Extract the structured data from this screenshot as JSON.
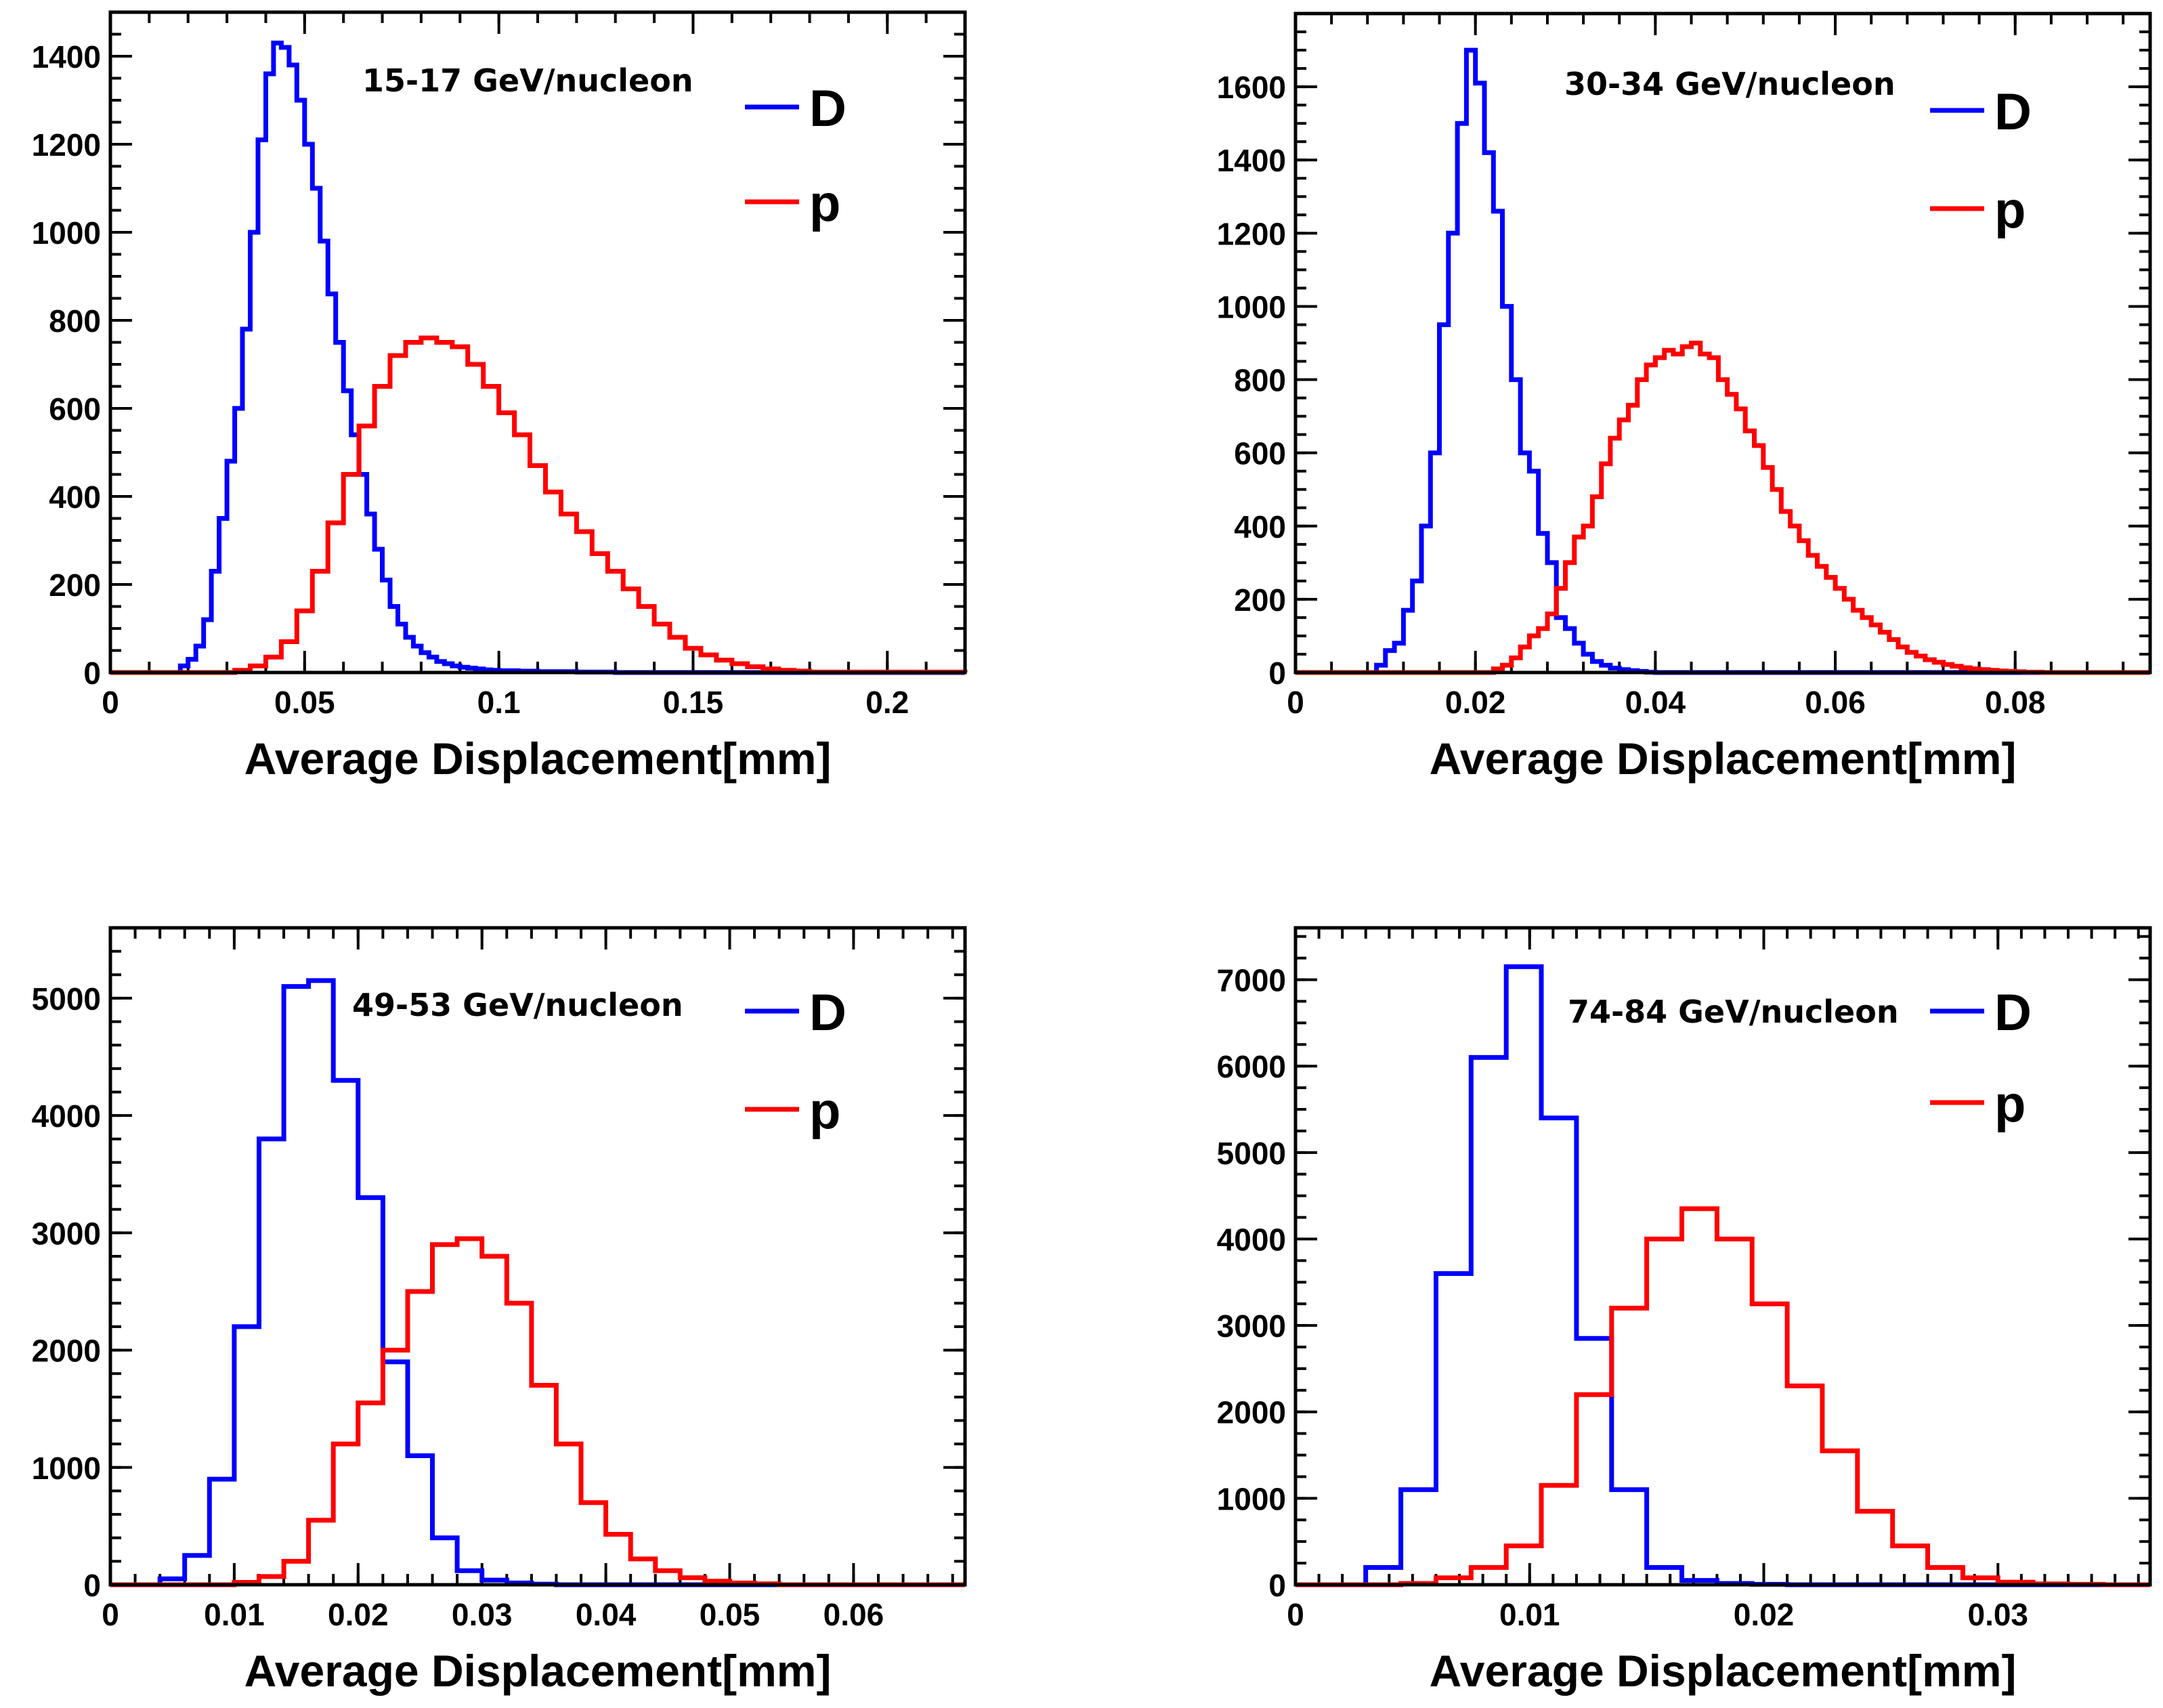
{
  "colors": {
    "D": "#0000ff",
    "p": "#ff0000",
    "axis": "#000000"
  },
  "chart_data": [
    {
      "type": "histogram",
      "energy_label": "15-17 GeV/nucleon",
      "xlabel": "Average Displacement[mm]",
      "ylabel": "",
      "xlim": [
        0,
        0.22
      ],
      "ylim": [
        0,
        1500
      ],
      "x_ticks": [
        0,
        0.05,
        0.1,
        0.15,
        0.2
      ],
      "x_tick_labels": [
        "0",
        "0.05",
        "0.1",
        "0.15",
        "0.2"
      ],
      "y_ticks": [
        0,
        200,
        400,
        600,
        800,
        1000,
        1200,
        1400
      ],
      "y_tick_labels": [
        "0",
        "200",
        "400",
        "600",
        "800",
        "1000",
        "1200",
        "1400"
      ],
      "x_minor_step": 0.01,
      "y_minor_step": 50,
      "legend": [
        "D",
        "p"
      ],
      "series": [
        {
          "name": "D",
          "color": "#0000ff",
          "x": [
            0.016,
            0.018,
            0.02,
            0.022,
            0.024,
            0.026,
            0.028,
            0.03,
            0.032,
            0.034,
            0.036,
            0.038,
            0.04,
            0.042,
            0.044,
            0.046,
            0.048,
            0.05,
            0.052,
            0.054,
            0.056,
            0.058,
            0.06,
            0.062,
            0.064,
            0.066,
            0.068,
            0.07,
            0.072,
            0.074,
            0.076,
            0.078,
            0.08,
            0.082,
            0.084,
            0.086,
            0.088,
            0.09,
            0.092,
            0.094,
            0.096,
            0.098,
            0.1,
            0.105,
            0.11,
            0.12,
            0.13,
            0.22
          ],
          "values": [
            0,
            15,
            30,
            60,
            120,
            230,
            350,
            480,
            600,
            780,
            1000,
            1210,
            1360,
            1430,
            1420,
            1380,
            1300,
            1200,
            1100,
            980,
            860,
            750,
            640,
            540,
            450,
            360,
            280,
            210,
            150,
            110,
            80,
            60,
            45,
            35,
            25,
            20,
            15,
            12,
            10,
            8,
            6,
            5,
            4,
            3,
            2,
            1,
            0,
            0
          ]
        },
        {
          "name": "p",
          "color": "#ff0000",
          "x": [
            0,
            0.032,
            0.036,
            0.04,
            0.044,
            0.048,
            0.052,
            0.056,
            0.06,
            0.064,
            0.068,
            0.072,
            0.076,
            0.08,
            0.084,
            0.088,
            0.092,
            0.096,
            0.1,
            0.104,
            0.108,
            0.112,
            0.116,
            0.12,
            0.124,
            0.128,
            0.132,
            0.136,
            0.14,
            0.144,
            0.148,
            0.152,
            0.156,
            0.16,
            0.164,
            0.168,
            0.172,
            0.176,
            0.18,
            0.22
          ],
          "values": [
            0,
            5,
            15,
            35,
            70,
            140,
            230,
            340,
            450,
            560,
            650,
            720,
            750,
            760,
            750,
            740,
            700,
            650,
            590,
            540,
            470,
            410,
            360,
            320,
            270,
            230,
            190,
            150,
            110,
            80,
            55,
            40,
            28,
            20,
            13,
            8,
            5,
            3,
            1,
            0
          ]
        }
      ]
    },
    {
      "type": "histogram",
      "energy_label": "30-34 GeV/nucleon",
      "xlabel": "Average Displacement[mm]",
      "ylabel": "",
      "xlim": [
        0,
        0.095
      ],
      "ylim": [
        0,
        1800
      ],
      "x_ticks": [
        0,
        0.02,
        0.04,
        0.06,
        0.08
      ],
      "x_tick_labels": [
        "0",
        "0.02",
        "0.04",
        "0.06",
        "0.08"
      ],
      "y_ticks": [
        0,
        200,
        400,
        600,
        800,
        1000,
        1200,
        1400,
        1600
      ],
      "y_tick_labels": [
        "0",
        "200",
        "400",
        "600",
        "800",
        "1000",
        "1200",
        "1400",
        "1600"
      ],
      "x_minor_step": 0.004,
      "y_minor_step": 50,
      "legend": [
        "D",
        "p"
      ],
      "series": [
        {
          "name": "D",
          "color": "#0000ff",
          "x": [
            0,
            0.009,
            0.01,
            0.011,
            0.012,
            0.013,
            0.014,
            0.015,
            0.016,
            0.017,
            0.018,
            0.019,
            0.02,
            0.021,
            0.022,
            0.023,
            0.024,
            0.025,
            0.026,
            0.027,
            0.028,
            0.029,
            0.03,
            0.031,
            0.032,
            0.033,
            0.034,
            0.035,
            0.036,
            0.037,
            0.038,
            0.039,
            0.04,
            0.095
          ],
          "values": [
            0,
            20,
            60,
            80,
            170,
            250,
            400,
            600,
            950,
            1200,
            1500,
            1700,
            1610,
            1420,
            1260,
            1000,
            800,
            600,
            550,
            380,
            300,
            150,
            120,
            80,
            50,
            30,
            20,
            12,
            8,
            5,
            3,
            1,
            0,
            0
          ]
        },
        {
          "name": "p",
          "color": "#ff0000",
          "x": [
            0,
            0.022,
            0.023,
            0.024,
            0.025,
            0.026,
            0.027,
            0.028,
            0.029,
            0.03,
            0.031,
            0.032,
            0.033,
            0.034,
            0.035,
            0.036,
            0.037,
            0.038,
            0.039,
            0.04,
            0.041,
            0.042,
            0.043,
            0.044,
            0.045,
            0.046,
            0.047,
            0.048,
            0.049,
            0.05,
            0.051,
            0.052,
            0.053,
            0.054,
            0.055,
            0.056,
            0.057,
            0.058,
            0.059,
            0.06,
            0.061,
            0.062,
            0.063,
            0.064,
            0.065,
            0.066,
            0.067,
            0.068,
            0.069,
            0.07,
            0.071,
            0.072,
            0.073,
            0.074,
            0.075,
            0.076,
            0.077,
            0.078,
            0.079,
            0.08,
            0.081,
            0.082,
            0.083,
            0.084,
            0.085,
            0.095
          ],
          "values": [
            0,
            10,
            20,
            40,
            70,
            100,
            120,
            160,
            230,
            300,
            370,
            400,
            480,
            570,
            640,
            690,
            730,
            800,
            840,
            860,
            880,
            870,
            890,
            900,
            870,
            860,
            800,
            760,
            720,
            660,
            620,
            560,
            500,
            440,
            400,
            360,
            320,
            290,
            260,
            230,
            200,
            170,
            150,
            130,
            110,
            90,
            70,
            55,
            45,
            35,
            28,
            22,
            17,
            13,
            10,
            8,
            6,
            4,
            3,
            2,
            1,
            1,
            0,
            0,
            0,
            0
          ]
        }
      ]
    },
    {
      "type": "histogram",
      "energy_label": "49-53 GeV/nucleon",
      "xlabel": "Average Displacement[mm]",
      "ylabel": "",
      "xlim": [
        0,
        0.069
      ],
      "ylim": [
        0,
        5600
      ],
      "x_ticks": [
        0,
        0.01,
        0.02,
        0.03,
        0.04,
        0.05,
        0.06
      ],
      "x_tick_labels": [
        "0",
        "0.01",
        "0.02",
        "0.03",
        "0.04",
        "0.05",
        "0.06"
      ],
      "y_ticks": [
        0,
        1000,
        2000,
        3000,
        4000,
        5000
      ],
      "y_tick_labels": [
        "0",
        "1000",
        "2000",
        "3000",
        "4000",
        "5000"
      ],
      "x_minor_step": 0.002,
      "y_minor_step": 200,
      "legend": [
        "D",
        "p"
      ],
      "series": [
        {
          "name": "D",
          "color": "#0000ff",
          "x": [
            0,
            0.004,
            0.006,
            0.008,
            0.01,
            0.012,
            0.014,
            0.016,
            0.018,
            0.02,
            0.022,
            0.024,
            0.026,
            0.028,
            0.03,
            0.032,
            0.034,
            0.036,
            0.069
          ],
          "values": [
            0,
            50,
            250,
            900,
            2200,
            3800,
            5100,
            5150,
            4300,
            3300,
            1900,
            1100,
            400,
            120,
            40,
            15,
            5,
            0,
            0
          ]
        },
        {
          "name": "p",
          "color": "#ff0000",
          "x": [
            0,
            0.01,
            0.012,
            0.014,
            0.016,
            0.018,
            0.02,
            0.022,
            0.024,
            0.026,
            0.028,
            0.03,
            0.032,
            0.034,
            0.036,
            0.038,
            0.04,
            0.042,
            0.044,
            0.046,
            0.048,
            0.05,
            0.052,
            0.054,
            0.069
          ],
          "values": [
            0,
            20,
            70,
            200,
            550,
            1200,
            1550,
            2000,
            2500,
            2900,
            2950,
            2800,
            2400,
            1700,
            1200,
            700,
            430,
            220,
            120,
            60,
            30,
            15,
            8,
            0,
            0
          ]
        }
      ]
    },
    {
      "type": "histogram",
      "energy_label": "74-84 GeV/nucleon",
      "xlabel": "Average Displacement[mm]",
      "ylabel": "",
      "xlim": [
        0,
        0.0365
      ],
      "ylim": [
        0,
        7600
      ],
      "x_ticks": [
        0,
        0.01,
        0.02,
        0.03
      ],
      "x_tick_labels": [
        "0",
        "0.01",
        "0.02",
        "0.03"
      ],
      "y_ticks": [
        0,
        1000,
        2000,
        3000,
        4000,
        5000,
        6000,
        7000
      ],
      "y_tick_labels": [
        "0",
        "1000",
        "2000",
        "3000",
        "4000",
        "5000",
        "6000",
        "7000"
      ],
      "x_minor_step": 0.001,
      "y_minor_step": 250,
      "legend": [
        "D",
        "p"
      ],
      "series": [
        {
          "name": "D",
          "color": "#0000ff",
          "x": [
            0,
            0.003,
            0.0045,
            0.006,
            0.0075,
            0.009,
            0.0105,
            0.012,
            0.0135,
            0.015,
            0.0165,
            0.018,
            0.0195,
            0.021,
            0.0365
          ],
          "values": [
            0,
            200,
            1100,
            3600,
            6100,
            7150,
            5400,
            2850,
            1100,
            200,
            50,
            15,
            5,
            0,
            0
          ]
        },
        {
          "name": "p",
          "color": "#ff0000",
          "x": [
            0,
            0.0045,
            0.006,
            0.0075,
            0.009,
            0.0105,
            0.012,
            0.0135,
            0.015,
            0.0165,
            0.018,
            0.0195,
            0.021,
            0.0225,
            0.024,
            0.0255,
            0.027,
            0.0285,
            0.03,
            0.0315,
            0.033,
            0.0345,
            0.0365
          ],
          "values": [
            0,
            15,
            80,
            200,
            450,
            1150,
            2200,
            3200,
            4000,
            4350,
            4000,
            3250,
            2300,
            1550,
            850,
            450,
            200,
            80,
            30,
            10,
            5,
            0,
            0
          ]
        }
      ]
    }
  ]
}
